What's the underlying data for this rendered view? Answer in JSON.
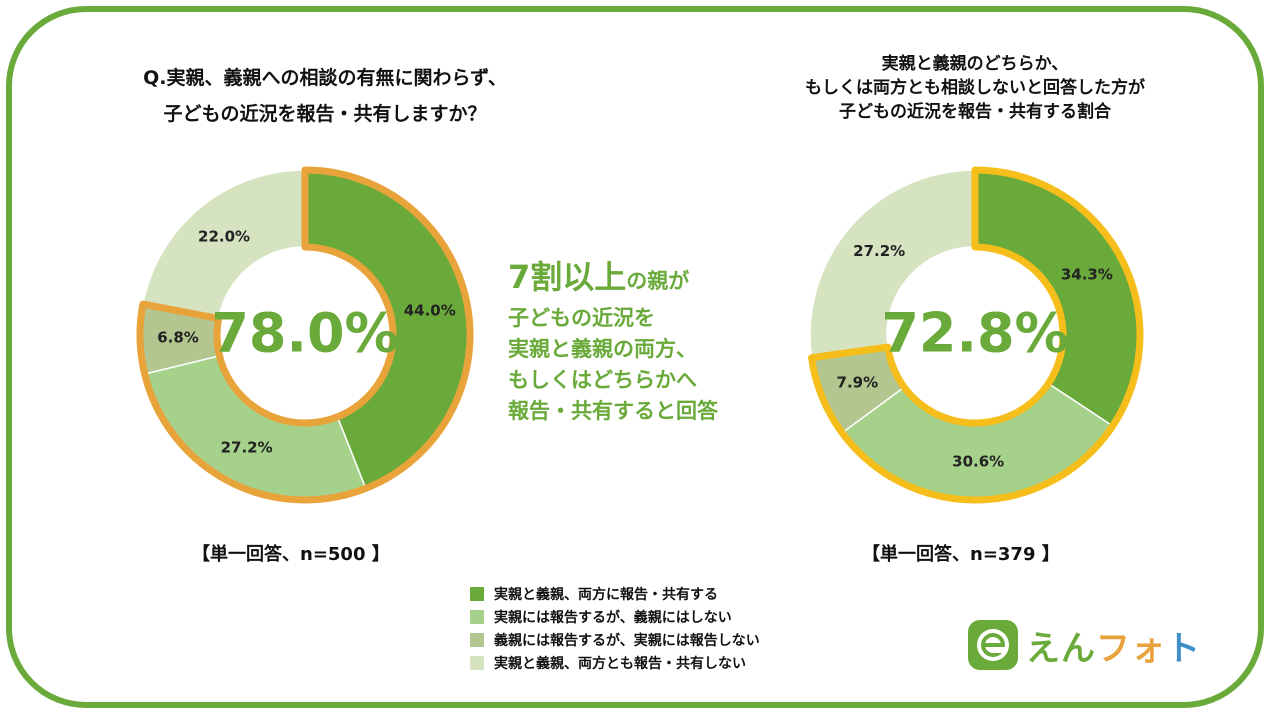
{
  "colors": {
    "frame": "#6aaa3a",
    "accent": "#6aaa3a",
    "highlight_left": "#e8a33a",
    "highlight_right": "#f5be1a",
    "series": [
      "#6aaa3a",
      "#a6d18a",
      "#b3c68f",
      "#d6e3c0"
    ]
  },
  "mid_text": {
    "head": "7割以上",
    "head_suffix": "の親が",
    "lines": [
      "子どもの近況を",
      "実親と義親の両方、",
      "もしくはどちらかへ",
      "報告・共有すると回答"
    ]
  },
  "logo": {
    "icon": "e-photo-logo-icon",
    "parts": [
      "え",
      "ん",
      "フ",
      "ォ",
      "ト"
    ]
  },
  "chart_data": [
    {
      "type": "pie",
      "title_lines": [
        "Q.実親、義親への相談の有無に関わらず、",
        "子どもの近況を報告・共有しますか？"
      ],
      "center_label": "78.0%",
      "note": "【単一回答、n=500 】",
      "categories": [
        "実親と義親、両方に報告・共有する",
        "実親には報告するが、義親にはしない",
        "義親には報告するが、実親には報告しない",
        "実親と義親、両方とも報告・共有しない"
      ],
      "values": [
        44.0,
        27.2,
        6.8,
        22.0
      ],
      "labels": [
        "44.0%",
        "27.2%",
        "6.8%",
        "22.0%"
      ],
      "highlighted": [
        0,
        1,
        2
      ]
    },
    {
      "type": "pie",
      "title_lines": [
        "実親と義親のどちらか、",
        "もしくは両方とも相談しないと回答した方が",
        "子どもの近況を報告・共有する割合"
      ],
      "center_label": "72.8%",
      "note": "【単一回答、n=379 】",
      "categories": [
        "実親と義親、両方に報告・共有する",
        "実親には報告するが、義親にはしない",
        "義親には報告するが、実親には報告しない",
        "実親と義親、両方とも報告・共有しない"
      ],
      "values": [
        34.3,
        30.6,
        7.9,
        27.2
      ],
      "labels": [
        "34.3%",
        "30.6%",
        "7.9%",
        "27.2%"
      ],
      "highlighted": [
        0,
        1,
        2
      ]
    }
  ],
  "legend": {
    "items": [
      "実親と義親、両方に報告・共有する",
      "実親には報告するが、義親にはしない",
      "義親には報告するが、実親には報告しない",
      "実親と義親、両方とも報告・共有しない"
    ]
  }
}
